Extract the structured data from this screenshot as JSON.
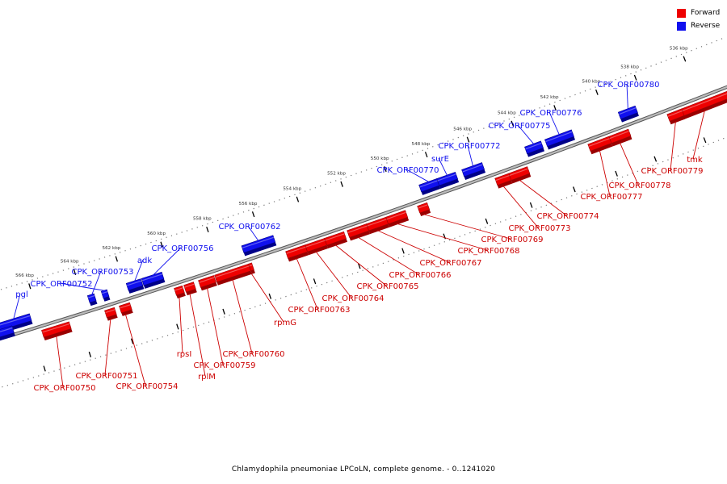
{
  "legend": {
    "forward": {
      "label": "Forward",
      "color": "#ee0000"
    },
    "reverse": {
      "label": "Reverse",
      "color": "#1010ee"
    }
  },
  "caption": "Chlamydophila pneumoniae LPCoLN, complete genome. - 0..1241020",
  "ticks": [
    "536 kbp",
    "538 kbp",
    "540 kbp",
    "542 kbp",
    "544 kbp",
    "546 kbp",
    "548 kbp",
    "550 kbp",
    "552 kbp",
    "554 kbp",
    "556 kbp",
    "558 kbp",
    "560 kbp",
    "562 kbp",
    "564 kbp",
    "566 kbp"
  ],
  "genes_reverse": [
    {
      "label": "CPK_ORF00780"
    },
    {
      "label": "CPK_ORF00776"
    },
    {
      "label": "CPK_ORF00775"
    },
    {
      "label": "CPK_ORF00772"
    },
    {
      "label": "surE"
    },
    {
      "label": "CPK_ORF00770"
    },
    {
      "label": "CPK_ORF00762"
    },
    {
      "label": "CPK_ORF00756"
    },
    {
      "label": "adk"
    },
    {
      "label": "CPK_ORF00753"
    },
    {
      "label": "CPK_ORF00752"
    },
    {
      "label": "pgl"
    }
  ],
  "genes_forward": [
    {
      "label": "tmk"
    },
    {
      "label": "CPK_ORF00779"
    },
    {
      "label": "CPK_ORF00778"
    },
    {
      "label": "CPK_ORF00777"
    },
    {
      "label": "CPK_ORF00774"
    },
    {
      "label": "CPK_ORF00773"
    },
    {
      "label": "CPK_ORF00769"
    },
    {
      "label": "CPK_ORF00768"
    },
    {
      "label": "CPK_ORF00767"
    },
    {
      "label": "CPK_ORF00766"
    },
    {
      "label": "CPK_ORF00765"
    },
    {
      "label": "CPK_ORF00764"
    },
    {
      "label": "CPK_ORF00763"
    },
    {
      "label": "rpmG"
    },
    {
      "label": "CPK_ORF00760"
    },
    {
      "label": "CPK_ORF00759"
    },
    {
      "label": "rplM"
    },
    {
      "label": "rpsI"
    },
    {
      "label": "CPK_ORF00754"
    },
    {
      "label": "CPK_ORF00751"
    },
    {
      "label": "CPK_ORF00750"
    }
  ]
}
